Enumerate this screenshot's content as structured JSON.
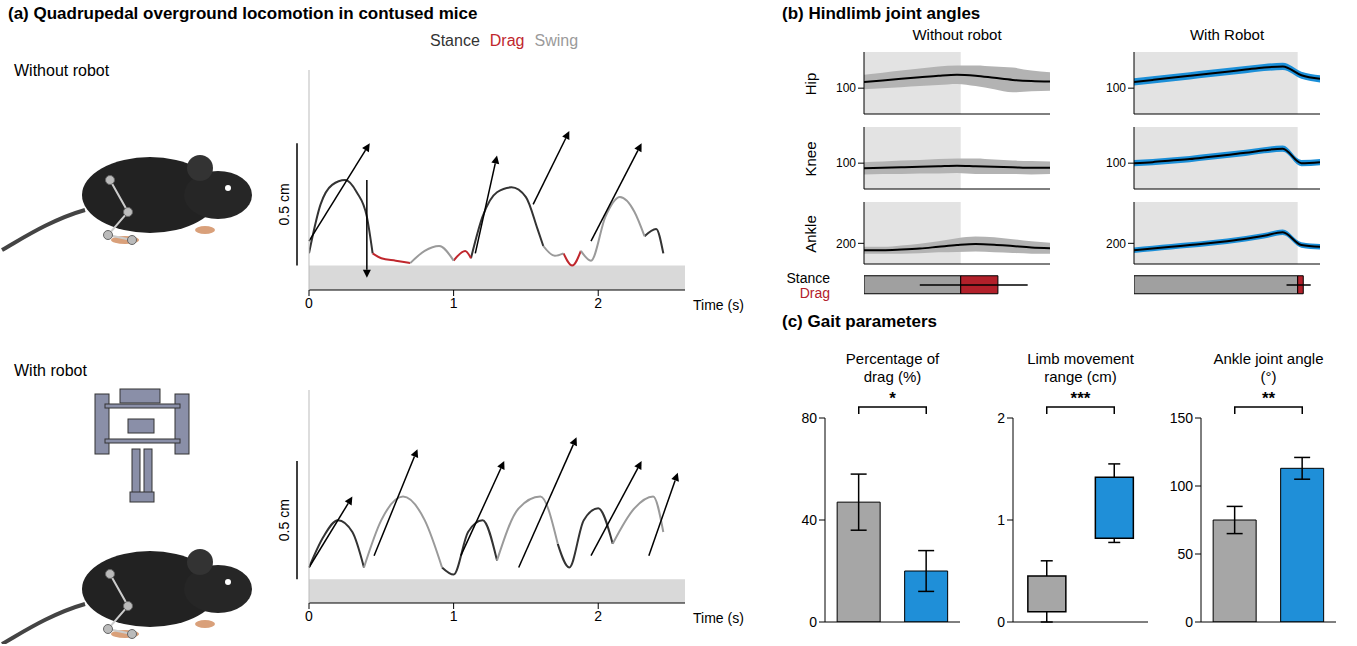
{
  "chart_data": [
    {
      "type": "line",
      "title": "(a) Quadrupedal overground locomotion in contused mice",
      "subtitle": "Without robot",
      "legend": "top",
      "x_label": "Time (s)",
      "x": [
        0,
        0.08,
        0.16,
        0.25,
        0.33,
        0.4,
        0.44,
        0.5,
        0.6,
        0.7,
        0.8,
        0.9,
        1.0,
        1.08,
        1.12,
        1.2,
        1.3,
        1.4,
        1.5,
        1.58,
        1.62,
        1.7,
        1.76,
        1.82,
        1.88,
        1.95,
        2.05,
        2.15,
        2.25,
        2.32,
        2.4,
        2.45
      ],
      "xlim": [
        0,
        2.6
      ],
      "xticks": [
        0,
        1,
        2
      ],
      "ylim": [
        -0.1,
        0.8
      ],
      "yticks": [],
      "tick_labels": "x",
      "scale_bar": {
        "value": 0.5,
        "label": "0.5 cm"
      },
      "vectors": [
        {
          "x0": 0.0,
          "y0": 0.1,
          "x1": 0.42,
          "y1": 0.5
        },
        {
          "x0": 0.4,
          "y0": 0.35,
          "x1": 0.4,
          "y1": -0.05
        },
        {
          "x0": 1.15,
          "y0": 0.05,
          "x1": 1.3,
          "y1": 0.45
        },
        {
          "x0": 1.55,
          "y0": 0.25,
          "x1": 1.8,
          "y1": 0.55
        },
        {
          "x0": 1.95,
          "y0": 0.1,
          "x1": 2.3,
          "y1": 0.5
        }
      ],
      "series": [
        {
          "name": "Stance",
          "color": "#333333",
          "values": [
            0.05,
            0.25,
            0.33,
            0.35,
            0.3,
            0.2,
            0.05,
            null,
            null,
            null,
            null,
            null,
            null,
            null,
            0.03,
            0.2,
            0.3,
            0.32,
            0.28,
            0.15,
            0.08,
            null,
            null,
            null,
            null,
            null,
            null,
            null,
            null,
            0.12,
            0.15,
            0.05
          ]
        },
        {
          "name": "Drag",
          "color": "#c0272d",
          "values": [
            null,
            null,
            null,
            null,
            null,
            null,
            0.05,
            0.03,
            0.02,
            0.01,
            null,
            null,
            0.02,
            0.06,
            0.03,
            null,
            null,
            null,
            null,
            null,
            null,
            null,
            0.05,
            0.0,
            0.06,
            null,
            null,
            null,
            null,
            null,
            null,
            null
          ]
        },
        {
          "name": "Swing",
          "color": "#9a9a9a",
          "values": [
            null,
            null,
            null,
            null,
            null,
            null,
            null,
            null,
            null,
            0.01,
            0.06,
            0.08,
            0.02,
            null,
            null,
            null,
            null,
            null,
            null,
            null,
            0.08,
            0.04,
            0.05,
            null,
            0.06,
            0.02,
            0.2,
            0.28,
            0.22,
            0.12,
            null,
            null
          ]
        }
      ]
    },
    {
      "type": "line",
      "subtitle": "With robot",
      "x_label": "Time (s)",
      "x": [
        0,
        0.1,
        0.2,
        0.3,
        0.38,
        0.5,
        0.65,
        0.8,
        0.92,
        1.0,
        1.1,
        1.2,
        1.3,
        1.45,
        1.6,
        1.72,
        1.8,
        1.9,
        2.0,
        2.1,
        2.25,
        2.38,
        2.45
      ],
      "xlim": [
        0,
        2.6
      ],
      "xticks": [
        0,
        1,
        2
      ],
      "ylim": [
        -0.1,
        0.8
      ],
      "yticks": [],
      "tick_labels": "x",
      "scale_bar": {
        "value": 0.5,
        "label": "0.5 cm"
      },
      "vectors": [
        {
          "x0": 0.0,
          "y0": 0.05,
          "x1": 0.3,
          "y1": 0.35
        },
        {
          "x0": 0.45,
          "y0": 0.1,
          "x1": 0.75,
          "y1": 0.55
        },
        {
          "x0": 1.05,
          "y0": 0.1,
          "x1": 1.35,
          "y1": 0.5
        },
        {
          "x0": 1.45,
          "y0": 0.05,
          "x1": 1.85,
          "y1": 0.6
        },
        {
          "x0": 1.95,
          "y0": 0.1,
          "x1": 2.3,
          "y1": 0.5
        },
        {
          "x0": 2.35,
          "y0": 0.1,
          "x1": 2.55,
          "y1": 0.45
        }
      ],
      "series": [
        {
          "name": "Stance",
          "color": "#333333",
          "values": [
            0.05,
            0.18,
            0.25,
            0.2,
            0.05,
            null,
            null,
            null,
            0.05,
            0.02,
            0.2,
            0.25,
            0.08,
            null,
            null,
            0.15,
            0.05,
            0.25,
            0.3,
            0.15,
            null,
            null,
            null
          ]
        },
        {
          "name": "Swing",
          "color": "#9a9a9a",
          "values": [
            null,
            null,
            null,
            null,
            0.05,
            0.25,
            0.35,
            0.25,
            0.05,
            null,
            null,
            null,
            0.08,
            0.3,
            0.35,
            0.15,
            null,
            null,
            null,
            0.15,
            0.3,
            0.35,
            0.2
          ]
        }
      ]
    },
    {
      "type": "line",
      "title": "(b) Hindlimb joint angles",
      "x": [
        0,
        10,
        20,
        30,
        40,
        50,
        60,
        70,
        80,
        90,
        100
      ],
      "xlim": [
        0,
        100
      ],
      "xticks": [],
      "tick_labels": "y",
      "joints": [
        {
          "name": "Hip",
          "ylim": [
            50,
            170
          ],
          "yticks": [
            100
          ]
        },
        {
          "name": "Knee",
          "ylim": [
            50,
            170
          ],
          "yticks": [
            100
          ]
        },
        {
          "name": "Ankle",
          "ylim": [
            140,
            320
          ],
          "yticks": [
            200
          ]
        }
      ],
      "phases": [
        {
          "name": "Stance",
          "color": "#a0a0a0"
        },
        {
          "name": "Drag",
          "color": "#b2202a"
        }
      ],
      "conditions": [
        {
          "name": "Without robot",
          "color": "#b3b3b3",
          "stance": 52,
          "drag": 20,
          "whisker": [
            30,
            88
          ],
          "series": [
            {
              "name": "Hip",
              "mean": [
                112,
                115,
                118,
                121,
                124,
                126,
                124,
                120,
                116,
                114,
                113
              ],
              "sd": [
                14,
                15,
                16,
                17,
                18,
                18,
                20,
                22,
                24,
                20,
                18
              ]
            },
            {
              "name": "Knee",
              "mean": [
                90,
                91,
                92,
                93,
                94,
                95,
                94,
                93,
                92,
                91,
                91
              ],
              "sd": [
                12,
                12,
                13,
                13,
                14,
                14,
                15,
                14,
                13,
                13,
                12
              ]
            },
            {
              "name": "Ankle",
              "mean": [
                180,
                180,
                182,
                185,
                190,
                195,
                198,
                196,
                192,
                188,
                186
              ],
              "sd": [
                10,
                10,
                12,
                14,
                16,
                20,
                22,
                22,
                20,
                18,
                16
              ]
            }
          ]
        },
        {
          "name": "With Robot",
          "color": "#1b8fd8",
          "stance": 88,
          "drag": 3,
          "whisker": [
            82,
            95
          ],
          "series": [
            {
              "name": "Hip",
              "mean": [
                112,
                116,
                120,
                124,
                128,
                132,
                136,
                140,
                142,
                125,
                118
              ],
              "sd": [
                7,
                7,
                7,
                7,
                7,
                7,
                7,
                7,
                7,
                7,
                7
              ]
            },
            {
              "name": "Knee",
              "mean": [
                100,
                102,
                105,
                108,
                112,
                116,
                120,
                125,
                128,
                100,
                102
              ],
              "sd": [
                6,
                6,
                6,
                6,
                6,
                6,
                6,
                6,
                6,
                6,
                6
              ]
            },
            {
              "name": "Ankle",
              "mean": [
                180,
                185,
                190,
                195,
                200,
                206,
                213,
                222,
                232,
                195,
                190
              ],
              "sd": [
                8,
                8,
                8,
                8,
                8,
                8,
                8,
                8,
                8,
                8,
                8
              ]
            }
          ]
        }
      ]
    },
    {
      "type": "bar",
      "title": "(c) Gait parameters",
      "charts": [
        {
          "type": "bar",
          "title": "Percentage of drag (%)",
          "categories": [
            null,
            null
          ],
          "values": [
            47,
            20
          ],
          "errors": [
            11,
            8
          ],
          "colors": [
            "#a6a6a6",
            "#1f8fd8"
          ],
          "ylim": [
            0,
            80
          ],
          "yticks": [
            0,
            40,
            80
          ],
          "significance": "*",
          "tick_labels": "y"
        },
        {
          "type": "box",
          "title": "Limb movement range (cm)",
          "categories": [
            null,
            null
          ],
          "boxes": [
            {
              "low": 0,
              "q1": 0.1,
              "q3": 0.45,
              "high": 0.6
            },
            {
              "low": 0.78,
              "q1": 0.82,
              "q3": 1.42,
              "high": 1.55
            }
          ],
          "colors": [
            "#a6a6a6",
            "#1f8fd8"
          ],
          "ylim": [
            0,
            2
          ],
          "yticks": [
            0,
            1,
            2
          ],
          "significance": "***",
          "tick_labels": "y"
        },
        {
          "type": "bar",
          "title": "Ankle joint angle (°)",
          "categories": [
            null,
            null
          ],
          "values": [
            75,
            113
          ],
          "errors": [
            10,
            8
          ],
          "colors": [
            "#a6a6a6",
            "#1f8fd8"
          ],
          "ylim": [
            0,
            150
          ],
          "yticks": [
            0,
            50,
            100,
            150
          ],
          "significance": "**",
          "tick_labels": "y"
        }
      ]
    }
  ]
}
